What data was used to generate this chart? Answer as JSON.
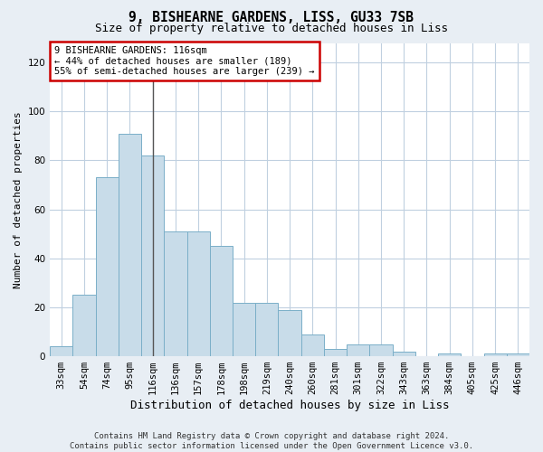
{
  "title1": "9, BISHEARNE GARDENS, LISS, GU33 7SB",
  "title2": "Size of property relative to detached houses in Liss",
  "xlabel": "Distribution of detached houses by size in Liss",
  "ylabel": "Number of detached properties",
  "categories": [
    "33sqm",
    "54sqm",
    "74sqm",
    "95sqm",
    "116sqm",
    "136sqm",
    "157sqm",
    "178sqm",
    "198sqm",
    "219sqm",
    "240sqm",
    "260sqm",
    "281sqm",
    "301sqm",
    "322sqm",
    "343sqm",
    "363sqm",
    "384sqm",
    "405sqm",
    "425sqm",
    "446sqm"
  ],
  "values": [
    4,
    25,
    73,
    91,
    82,
    51,
    51,
    45,
    22,
    22,
    19,
    9,
    3,
    5,
    5,
    2,
    0,
    1,
    0,
    1,
    1
  ],
  "bar_color": "#c8dce9",
  "bar_edge_color": "#7aafc8",
  "highlight_index": 4,
  "highlight_line_color": "#555555",
  "ylim": [
    0,
    128
  ],
  "yticks": [
    0,
    20,
    40,
    60,
    80,
    100,
    120
  ],
  "annotation_line1": "9 BISHEARNE GARDENS: 116sqm",
  "annotation_line2": "← 44% of detached houses are smaller (189)",
  "annotation_line3": "55% of semi-detached houses are larger (239) →",
  "annotation_box_color": "#ffffff",
  "annotation_box_edge_color": "#cc0000",
  "footer1": "Contains HM Land Registry data © Crown copyright and database right 2024.",
  "footer2": "Contains public sector information licensed under the Open Government Licence v3.0.",
  "bg_color": "#e8eef4",
  "plot_bg_color": "#ffffff",
  "grid_color": "#c0d0e0",
  "title1_fontsize": 10.5,
  "title2_fontsize": 9,
  "ylabel_fontsize": 8,
  "xlabel_fontsize": 9,
  "tick_fontsize": 7.5,
  "ann_fontsize": 7.5,
  "footer_fontsize": 6.5
}
